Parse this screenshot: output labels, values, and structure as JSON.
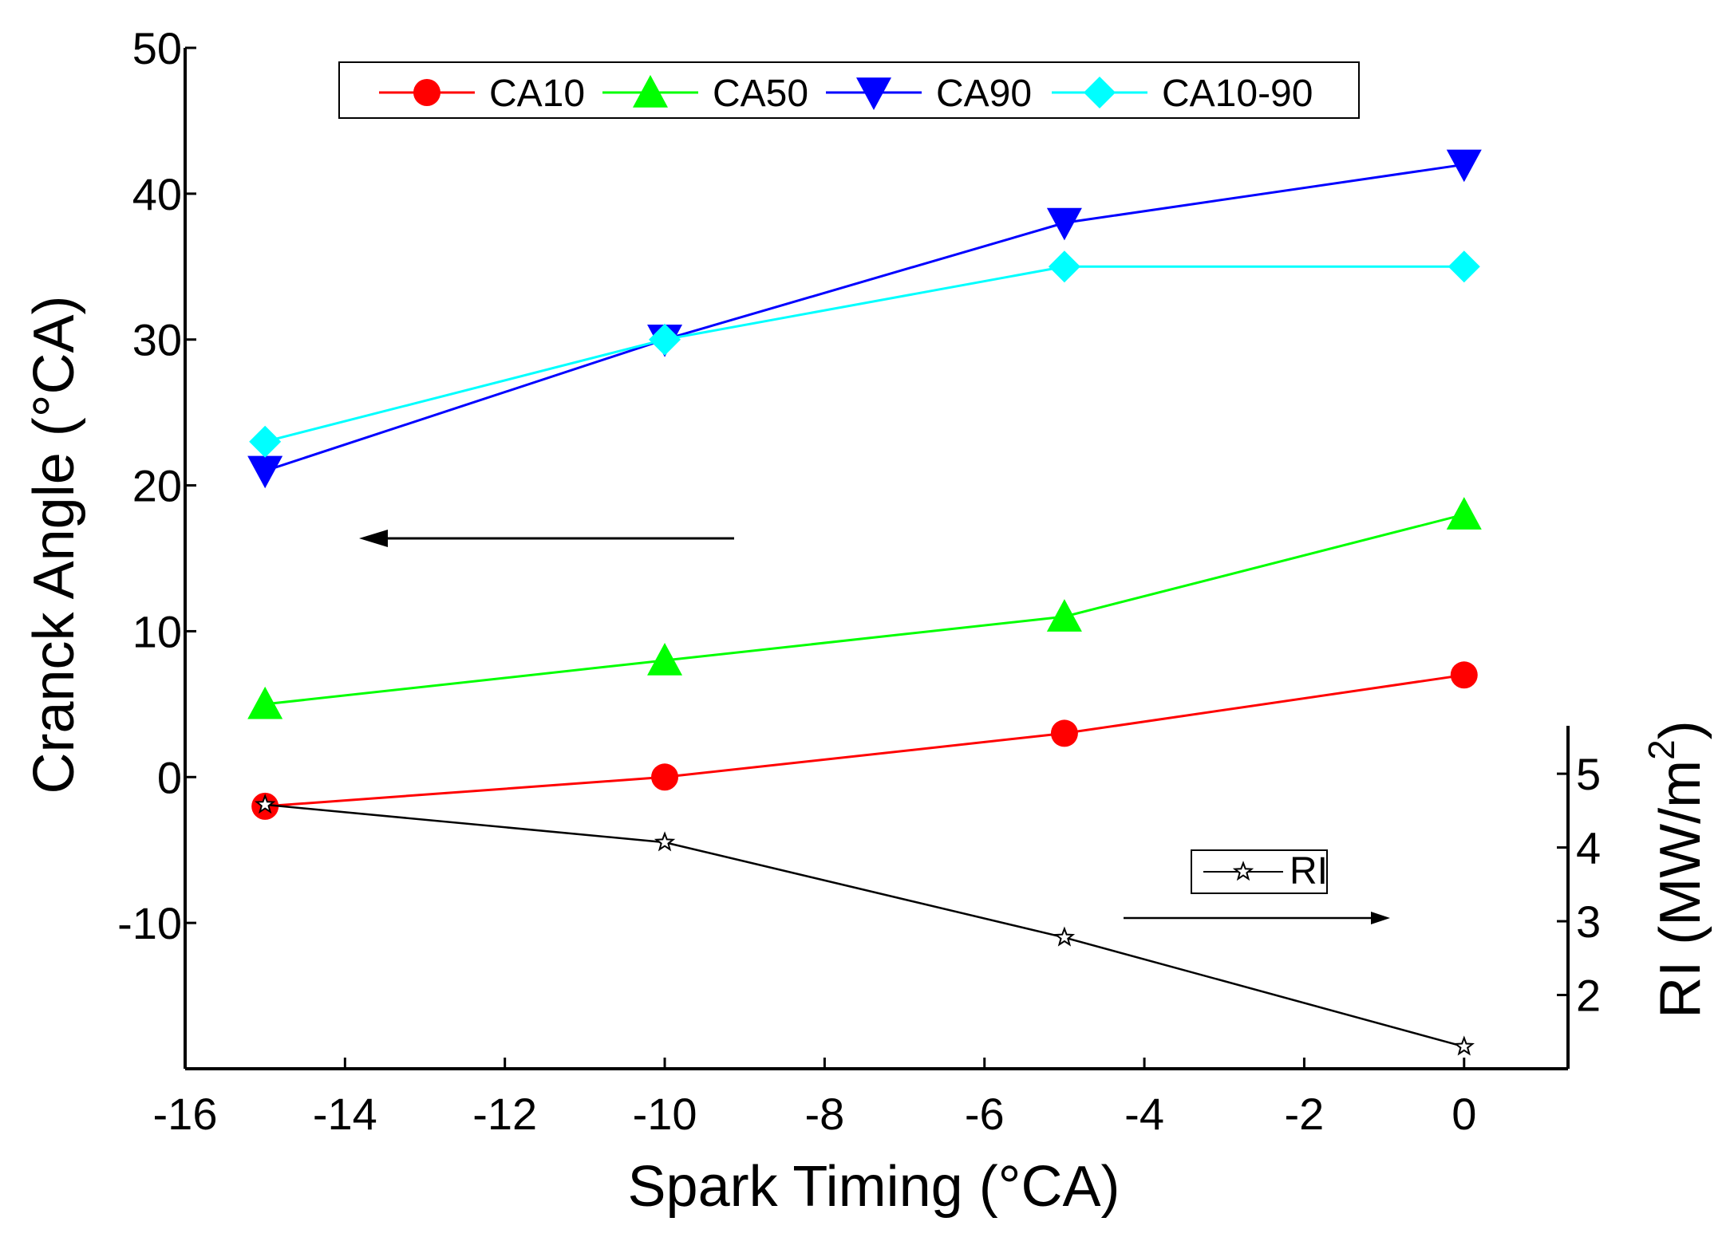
{
  "chart_data": {
    "type": "line",
    "title": "",
    "xlabel": "Spark Timing (°CA)",
    "ylabel": "Cranck Angle (°CA)",
    "y2label_main": "RI (MW/m",
    "y2label_sup": "2",
    "y2label_end": ")",
    "xlim": [
      -16,
      1.3
    ],
    "ylim": [
      -20,
      50
    ],
    "y2lim": [
      1.0,
      5.65
    ],
    "x_ticks": [
      -16,
      -14,
      -12,
      -10,
      -8,
      -6,
      -4,
      -2,
      0
    ],
    "x_tick_labels": [
      "-16",
      "-14",
      "-12",
      "-10",
      "-8",
      "-6",
      "-4",
      "-2",
      "0"
    ],
    "y_ticks": [
      -10,
      0,
      10,
      20,
      30,
      40,
      50
    ],
    "y_tick_labels": [
      "-10",
      "0",
      "10",
      "20",
      "30",
      "40",
      "50"
    ],
    "y2_ticks": [
      2,
      3,
      4,
      5
    ],
    "y2_tick_labels": [
      "2",
      "3",
      "4",
      "5"
    ],
    "x": [
      -15,
      -10,
      -5,
      0
    ],
    "series": [
      {
        "name": "CA10",
        "values": [
          -2,
          0,
          3,
          7
        ],
        "color": "#ff0000",
        "marker": "circle",
        "axis": "left"
      },
      {
        "name": "CA50",
        "values": [
          5,
          8,
          11,
          18
        ],
        "color": "#00ff00",
        "marker": "triangle-up",
        "axis": "left"
      },
      {
        "name": "CA90",
        "values": [
          21,
          30,
          38,
          42
        ],
        "color": "#0000ff",
        "marker": "triangle-down",
        "axis": "left"
      },
      {
        "name": "CA10-90",
        "values": [
          23,
          30,
          35,
          35
        ],
        "color": "#00ffff",
        "marker": "diamond",
        "axis": "left"
      },
      {
        "name": "RI",
        "values": [
          4.58,
          4.07,
          2.78,
          1.3
        ],
        "color": "#000000",
        "marker": "star",
        "axis": "right"
      }
    ],
    "legend": {
      "position": "top",
      "entries": [
        "CA10",
        "CA50",
        "CA90",
        "CA10-90"
      ]
    },
    "legend_ri": {
      "position": "right",
      "entries": [
        "RI"
      ]
    },
    "annotations": [
      {
        "type": "arrow",
        "direction": "left",
        "meaning": "left axis series"
      },
      {
        "type": "arrow",
        "direction": "right",
        "meaning": "right axis series"
      }
    ],
    "grid": false
  }
}
